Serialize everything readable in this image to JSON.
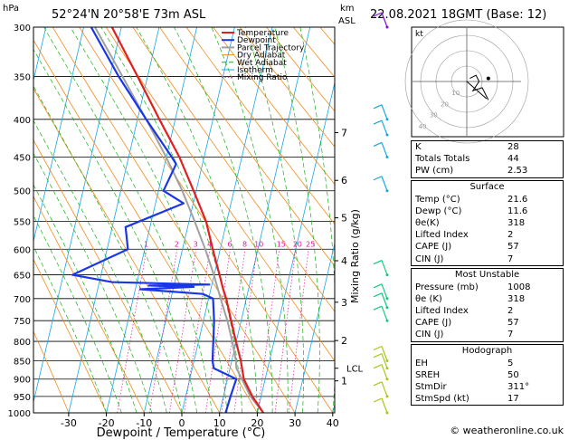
{
  "header": {
    "location": "52°24'N  20°58'E  73m  ASL",
    "datetime": "22.08.2021  18GMT  (Base: 12)",
    "hpa_label": "hPa",
    "km_label": "km",
    "asl_label": "ASL"
  },
  "chart_data": {
    "type": "skew-t log-p",
    "xlabel": "Dewpoint / Temperature (°C)",
    "ylabel": "Mixing Ratio (g/kg)",
    "x_ticks": [
      -30,
      -20,
      -10,
      0,
      10,
      20,
      30,
      40
    ],
    "pressure_ticks": [
      300,
      350,
      400,
      450,
      500,
      550,
      600,
      650,
      700,
      750,
      800,
      850,
      900,
      950,
      1000
    ],
    "km_ticks": [
      {
        "label": "7",
        "p": 417
      },
      {
        "label": "6",
        "p": 484
      },
      {
        "label": "5",
        "p": 544
      },
      {
        "label": "4",
        "p": 622
      },
      {
        "label": "3",
        "p": 708
      },
      {
        "label": "2",
        "p": 798
      },
      {
        "label": "1",
        "p": 905
      }
    ],
    "lcl": {
      "label": "LCL",
      "p": 870
    },
    "mixing_ratio_labels": [
      "1",
      "2",
      "3",
      "4",
      "6",
      "8",
      "10",
      "15",
      "20",
      "25"
    ],
    "mixing_ratio_values": [
      1,
      2,
      3,
      4,
      6,
      8,
      10,
      15,
      20,
      25
    ],
    "legend": [
      "Temperature",
      "Dewpoint",
      "Parcel Trajectory",
      "Dry Adiabat",
      "Wet Adiabat",
      "Isotherm",
      "Mixing Ratio"
    ],
    "legend_placement": "top-left of diagram",
    "colors": {
      "temperature": "#e02020",
      "dewpoint": "#1a37e6",
      "parcel": "#a0a0a0",
      "dry_adiabat": "#f28c1a",
      "wet_adiabat": "#16b316",
      "isotherm": "#19a6e8",
      "mixing_ratio": "#e0189e"
    },
    "temperature": [
      [
        1000,
        21.6
      ],
      [
        950,
        17
      ],
      [
        900,
        13
      ],
      [
        850,
        10.5
      ],
      [
        800,
        7.5
      ],
      [
        750,
        4.5
      ],
      [
        700,
        1.5
      ],
      [
        680,
        0
      ],
      [
        650,
        -2
      ],
      [
        600,
        -5.5
      ],
      [
        550,
        -9
      ],
      [
        500,
        -14
      ],
      [
        450,
        -19.5
      ],
      [
        400,
        -26.5
      ],
      [
        350,
        -34
      ],
      [
        300,
        -42.5
      ]
    ],
    "dewpoint": [
      [
        1000,
        11.6
      ],
      [
        950,
        11.2
      ],
      [
        900,
        11
      ],
      [
        870,
        4
      ],
      [
        850,
        3
      ],
      [
        800,
        1.5
      ],
      [
        750,
        0
      ],
      [
        700,
        -2
      ],
      [
        690,
        -5
      ],
      [
        680,
        -22
      ],
      [
        675,
        -8
      ],
      [
        672,
        -20
      ],
      [
        670,
        -4
      ],
      [
        665,
        -30
      ],
      [
        650,
        -41
      ],
      [
        600,
        -28
      ],
      [
        560,
        -30
      ],
      [
        520,
        -16
      ],
      [
        500,
        -22
      ],
      [
        460,
        -20
      ],
      [
        450,
        -21.5
      ],
      [
        400,
        -30
      ],
      [
        350,
        -39
      ],
      [
        300,
        -48
      ]
    ],
    "parcel": [
      [
        1000,
        21.6
      ],
      [
        950,
        16.5
      ],
      [
        900,
        12.5
      ],
      [
        870,
        10
      ],
      [
        850,
        9.2
      ],
      [
        800,
        6.5
      ],
      [
        750,
        3.5
      ],
      [
        700,
        0
      ],
      [
        650,
        -3.5
      ],
      [
        600,
        -7.5
      ],
      [
        550,
        -12
      ],
      [
        500,
        -17
      ],
      [
        450,
        -23
      ],
      [
        400,
        -30
      ],
      [
        350,
        -38
      ],
      [
        300,
        -47
      ]
    ],
    "hodograph": {
      "label": "kt",
      "ring_labels": [
        "10",
        "20",
        "30",
        "40"
      ],
      "trace": [
        [
          2,
          2
        ],
        [
          6,
          4
        ],
        [
          8,
          0
        ],
        [
          4,
          -6
        ],
        [
          10,
          -4
        ],
        [
          14,
          -12
        ]
      ],
      "storm_motion": {
        "dir": 311,
        "speed": 17
      }
    }
  },
  "indices": {
    "basic": [
      {
        "label": "K",
        "value": "28"
      },
      {
        "label": "Totals Totals",
        "value": "44"
      },
      {
        "label": "PW (cm)",
        "value": "2.53"
      }
    ],
    "surface": {
      "title": "Surface",
      "rows": [
        {
          "label": "Temp (°C)",
          "value": "21.6"
        },
        {
          "label": "Dewp (°C)",
          "value": "11.6"
        },
        {
          "label": "θe(K)",
          "value": "318"
        },
        {
          "label": "Lifted Index",
          "value": "2"
        },
        {
          "label": "CAPE (J)",
          "value": "57"
        },
        {
          "label": "CIN (J)",
          "value": "7"
        }
      ]
    },
    "unstable": {
      "title": "Most Unstable",
      "rows": [
        {
          "label": "Pressure (mb)",
          "value": "1008"
        },
        {
          "label": "θe (K)",
          "value": "318"
        },
        {
          "label": "Lifted Index",
          "value": "2"
        },
        {
          "label": "CAPE (J)",
          "value": "57"
        },
        {
          "label": "CIN (J)",
          "value": "7"
        }
      ]
    },
    "hodograph": {
      "title": "Hodograph",
      "rows": [
        {
          "label": "EH",
          "value": "5"
        },
        {
          "label": "SREH",
          "value": "50"
        },
        {
          "label": "StmDir",
          "value": "311°"
        },
        {
          "label": "StmSpd (kt)",
          "value": "17"
        }
      ]
    }
  },
  "footer": {
    "credit": "© weatheronline.co.uk"
  }
}
